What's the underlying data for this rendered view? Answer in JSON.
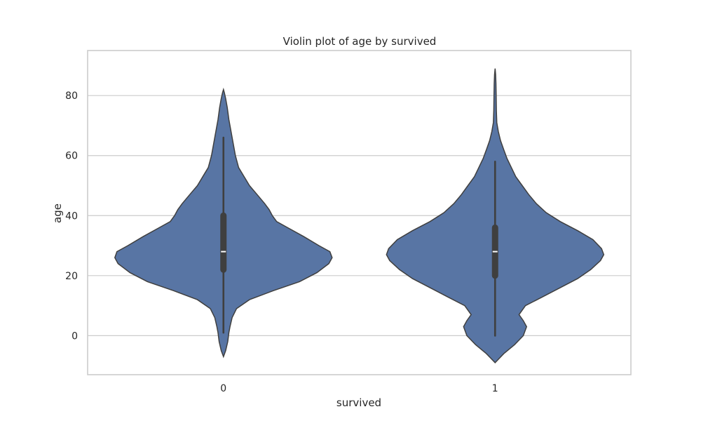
{
  "chart_data": {
    "type": "violin",
    "title": "Violin plot of age by survived",
    "xlabel": "survived",
    "ylabel": "age",
    "ylim": [
      -13,
      95
    ],
    "yticks": [
      0,
      20,
      40,
      60,
      80
    ],
    "grid": true,
    "fill_color": "#5875a4",
    "line_color": "#3f3f3f",
    "groups": [
      {
        "category": "0",
        "min": 1,
        "q1": 22,
        "median": 28,
        "q3": 40,
        "max": 66,
        "kde_range": [
          -7,
          82
        ],
        "profile": [
          [
            -7,
            0.0
          ],
          [
            -5,
            0.02
          ],
          [
            -2,
            0.04
          ],
          [
            1,
            0.05
          ],
          [
            3,
            0.06
          ],
          [
            6,
            0.08
          ],
          [
            9,
            0.12
          ],
          [
            12,
            0.24
          ],
          [
            15,
            0.46
          ],
          [
            18,
            0.7
          ],
          [
            21,
            0.86
          ],
          [
            24,
            0.97
          ],
          [
            26,
            1.0
          ],
          [
            28,
            0.98
          ],
          [
            30,
            0.88
          ],
          [
            33,
            0.74
          ],
          [
            36,
            0.59
          ],
          [
            38,
            0.49
          ],
          [
            40,
            0.45
          ],
          [
            42,
            0.42
          ],
          [
            44,
            0.38
          ],
          [
            47,
            0.31
          ],
          [
            50,
            0.24
          ],
          [
            53,
            0.19
          ],
          [
            56,
            0.14
          ],
          [
            60,
            0.11
          ],
          [
            64,
            0.09
          ],
          [
            68,
            0.07
          ],
          [
            72,
            0.05
          ],
          [
            76,
            0.035
          ],
          [
            79,
            0.02
          ],
          [
            81,
            0.008
          ],
          [
            82,
            0.0
          ]
        ]
      },
      {
        "category": "1",
        "min": 0,
        "q1": 20,
        "median": 28,
        "q3": 36,
        "max": 58,
        "kde_range": [
          -9,
          89
        ],
        "profile": [
          [
            -9,
            0.0
          ],
          [
            -6,
            0.08
          ],
          [
            -3,
            0.18
          ],
          [
            0,
            0.26
          ],
          [
            3,
            0.29
          ],
          [
            5,
            0.26
          ],
          [
            7,
            0.22
          ],
          [
            10,
            0.28
          ],
          [
            13,
            0.44
          ],
          [
            16,
            0.6
          ],
          [
            19,
            0.76
          ],
          [
            22,
            0.88
          ],
          [
            25,
            0.97
          ],
          [
            27,
            1.0
          ],
          [
            29,
            0.98
          ],
          [
            32,
            0.9
          ],
          [
            35,
            0.76
          ],
          [
            38,
            0.6
          ],
          [
            41,
            0.47
          ],
          [
            44,
            0.38
          ],
          [
            47,
            0.31
          ],
          [
            50,
            0.25
          ],
          [
            53,
            0.19
          ],
          [
            56,
            0.15
          ],
          [
            59,
            0.11
          ],
          [
            62,
            0.08
          ],
          [
            65,
            0.05
          ],
          [
            68,
            0.03
          ],
          [
            71,
            0.016
          ],
          [
            75,
            0.012
          ],
          [
            80,
            0.01
          ],
          [
            84,
            0.008
          ],
          [
            87,
            0.005
          ],
          [
            89,
            0.0
          ]
        ]
      }
    ]
  }
}
